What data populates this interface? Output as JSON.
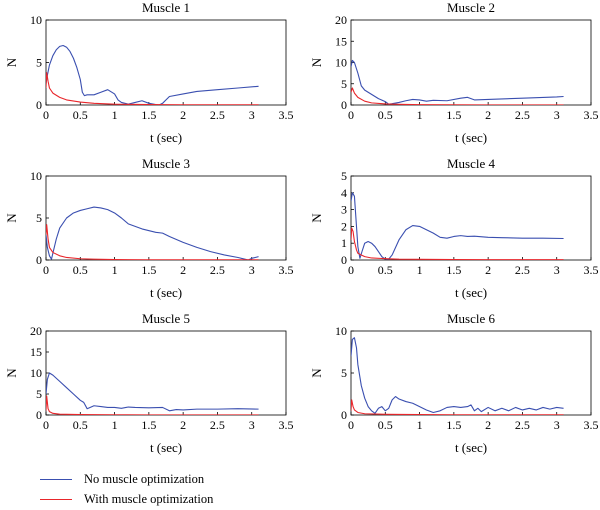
{
  "colors": {
    "no_opt": "#3a4fb0",
    "with_opt": "#e8262b"
  },
  "legend": {
    "items": [
      {
        "label": "No muscle optimization",
        "color": "#3a4fb0"
      },
      {
        "label": "With muscle optimization",
        "color": "#e8262b"
      }
    ]
  },
  "chart_data": [
    {
      "type": "line",
      "title": "Muscle 1",
      "xlabel": "t (sec)",
      "ylabel": "N",
      "xlim": [
        0,
        3.5
      ],
      "ylim": [
        0,
        10
      ],
      "xticks": [
        "0",
        "0.5",
        "1",
        "1.5",
        "2",
        "2.5",
        "3",
        "3.5"
      ],
      "yticks": [
        "0",
        "5",
        "10"
      ],
      "series": [
        {
          "name": "No muscle optimization",
          "color": "#3a4fb0",
          "x": [
            0,
            0.02,
            0.05,
            0.1,
            0.15,
            0.2,
            0.25,
            0.3,
            0.35,
            0.4,
            0.45,
            0.5,
            0.53,
            0.56,
            0.6,
            0.7,
            0.8,
            0.9,
            1.0,
            1.05,
            1.1,
            1.2,
            1.3,
            1.4,
            1.5,
            1.6,
            1.65,
            1.7,
            1.75,
            1.8,
            2.0,
            2.2,
            2.5,
            2.8,
            3.1
          ],
          "y": [
            2.5,
            3.5,
            4.7,
            5.8,
            6.5,
            6.9,
            7.0,
            6.8,
            6.3,
            5.5,
            4.4,
            3.0,
            1.5,
            1.1,
            1.2,
            1.2,
            1.5,
            1.8,
            1.3,
            0.6,
            0.3,
            0.1,
            0.3,
            0.5,
            0.2,
            0.05,
            0.0,
            0.2,
            0.6,
            1.0,
            1.3,
            1.6,
            1.8,
            2.0,
            2.2
          ]
        },
        {
          "name": "With muscle optimization",
          "color": "#e8262b",
          "x": [
            0,
            0.01,
            0.03,
            0.05,
            0.1,
            0.2,
            0.3,
            0.5,
            0.7,
            1.0,
            1.5,
            2.0,
            2.5,
            3.0,
            3.1
          ],
          "y": [
            2.0,
            3.8,
            2.8,
            2.0,
            1.4,
            0.9,
            0.6,
            0.35,
            0.2,
            0.1,
            0.05,
            0.03,
            0.02,
            0.02,
            0.02
          ]
        }
      ]
    },
    {
      "type": "line",
      "title": "Muscle 2",
      "xlabel": "t (sec)",
      "ylabel": "N",
      "xlim": [
        0,
        3.5
      ],
      "ylim": [
        0,
        20
      ],
      "xticks": [
        "0",
        "0.5",
        "1",
        "1.5",
        "2",
        "2.5",
        "3",
        "3.5"
      ],
      "yticks": [
        "0",
        "5",
        "10",
        "15",
        "20"
      ],
      "series": [
        {
          "name": "No muscle optimization",
          "color": "#3a4fb0",
          "x": [
            0,
            0.02,
            0.05,
            0.1,
            0.15,
            0.2,
            0.3,
            0.4,
            0.5,
            0.55,
            0.6,
            0.7,
            0.8,
            0.9,
            1.0,
            1.1,
            1.2,
            1.4,
            1.6,
            1.7,
            1.8,
            2.0,
            2.5,
            3.0,
            3.1
          ],
          "y": [
            9.0,
            10.5,
            10.0,
            7.5,
            4.5,
            3.5,
            2.5,
            1.5,
            0.8,
            0.2,
            0.3,
            0.6,
            1.0,
            1.3,
            1.2,
            0.9,
            1.1,
            1.0,
            1.6,
            1.8,
            1.2,
            1.3,
            1.6,
            1.9,
            2.0
          ]
        },
        {
          "name": "With muscle optimization",
          "color": "#e8262b",
          "x": [
            0,
            0.02,
            0.05,
            0.1,
            0.2,
            0.3,
            0.5,
            0.7,
            1.0,
            1.5,
            2.0,
            2.5,
            3.0,
            3.1
          ],
          "y": [
            3.0,
            4.0,
            2.8,
            1.8,
            0.9,
            0.5,
            0.25,
            0.15,
            0.08,
            0.05,
            0.03,
            0.02,
            0.02,
            0.02
          ]
        }
      ]
    },
    {
      "type": "line",
      "title": "Muscle 3",
      "xlabel": "t (sec)",
      "ylabel": "N",
      "xlim": [
        0,
        3.5
      ],
      "ylim": [
        0,
        10
      ],
      "xticks": [
        "0",
        "0.5",
        "1",
        "1.5",
        "2",
        "2.5",
        "3",
        "3.5"
      ],
      "yticks": [
        "0",
        "5",
        "10"
      ],
      "series": [
        {
          "name": "No muscle optimization",
          "color": "#3a4fb0",
          "x": [
            0,
            0.02,
            0.05,
            0.08,
            0.1,
            0.15,
            0.2,
            0.3,
            0.4,
            0.5,
            0.6,
            0.7,
            0.8,
            0.9,
            1.0,
            1.1,
            1.2,
            1.4,
            1.6,
            1.7,
            1.8,
            2.0,
            2.2,
            2.4,
            2.6,
            2.8,
            2.9,
            2.95,
            3.0,
            3.1
          ],
          "y": [
            3.0,
            1.5,
            0.5,
            0.1,
            0.8,
            2.5,
            3.8,
            5.0,
            5.6,
            5.9,
            6.1,
            6.3,
            6.2,
            6.0,
            5.6,
            5.0,
            4.3,
            3.7,
            3.3,
            3.2,
            2.8,
            2.1,
            1.5,
            1.0,
            0.6,
            0.3,
            0.1,
            0.0,
            0.2,
            0.4
          ]
        },
        {
          "name": "With muscle optimization",
          "color": "#e8262b",
          "x": [
            0,
            0.01,
            0.03,
            0.05,
            0.1,
            0.2,
            0.3,
            0.5,
            0.7,
            1.0,
            1.5,
            2.0,
            2.5,
            3.0,
            3.1
          ],
          "y": [
            3.0,
            4.2,
            2.5,
            1.5,
            0.9,
            0.5,
            0.3,
            0.15,
            0.1,
            0.05,
            0.03,
            0.02,
            0.02,
            0.02,
            0.02
          ]
        }
      ]
    },
    {
      "type": "line",
      "title": "Muscle 4",
      "xlabel": "t (sec)",
      "ylabel": "N",
      "xlim": [
        0,
        3.5
      ],
      "ylim": [
        0,
        5
      ],
      "xticks": [
        "0",
        "0.5",
        "1",
        "1.5",
        "2",
        "2.5",
        "3",
        "3.5"
      ],
      "yticks": [
        "0",
        "1",
        "2",
        "3",
        "4",
        "5"
      ],
      "series": [
        {
          "name": "No muscle optimization",
          "color": "#3a4fb0",
          "x": [
            0,
            0.02,
            0.05,
            0.08,
            0.1,
            0.13,
            0.16,
            0.2,
            0.25,
            0.3,
            0.35,
            0.4,
            0.45,
            0.5,
            0.55,
            0.6,
            0.7,
            0.8,
            0.9,
            1.0,
            1.1,
            1.2,
            1.3,
            1.4,
            1.5,
            1.6,
            1.7,
            1.8,
            2.0,
            2.2,
            2.5,
            2.8,
            3.1
          ],
          "y": [
            3.5,
            4.0,
            3.8,
            2.0,
            0.8,
            0.1,
            0.5,
            1.0,
            1.1,
            1.0,
            0.8,
            0.5,
            0.2,
            0.05,
            0.05,
            0.3,
            1.2,
            1.8,
            2.05,
            2.0,
            1.8,
            1.6,
            1.35,
            1.3,
            1.4,
            1.45,
            1.4,
            1.42,
            1.35,
            1.33,
            1.3,
            1.3,
            1.28
          ]
        },
        {
          "name": "With muscle optimization",
          "color": "#e8262b",
          "x": [
            0,
            0.01,
            0.03,
            0.05,
            0.08,
            0.1,
            0.15,
            0.2,
            0.3,
            0.5,
            0.7,
            1.0,
            1.5,
            2.0,
            2.5,
            3.0,
            3.1
          ],
          "y": [
            1.2,
            1.9,
            1.7,
            1.1,
            0.6,
            0.4,
            0.3,
            0.2,
            0.12,
            0.08,
            0.05,
            0.04,
            0.03,
            0.02,
            0.02,
            0.02,
            0.02
          ]
        }
      ]
    },
    {
      "type": "line",
      "title": "Muscle 5",
      "xlabel": "t (sec)",
      "ylabel": "N",
      "xlim": [
        0,
        3.5
      ],
      "ylim": [
        0,
        20
      ],
      "xticks": [
        "0",
        "0.5",
        "1",
        "1.5",
        "2",
        "2.5",
        "3",
        "3.5"
      ],
      "yticks": [
        "0",
        "5",
        "10",
        "15",
        "20"
      ],
      "series": [
        {
          "name": "No muscle optimization",
          "color": "#3a4fb0",
          "x": [
            0,
            0.02,
            0.05,
            0.1,
            0.2,
            0.3,
            0.4,
            0.5,
            0.55,
            0.6,
            0.7,
            0.8,
            0.9,
            1.0,
            1.1,
            1.2,
            1.3,
            1.5,
            1.7,
            1.8,
            1.9,
            2.0,
            2.2,
            2.5,
            2.8,
            3.1
          ],
          "y": [
            5.0,
            8.5,
            10.0,
            9.5,
            8.0,
            6.5,
            5.0,
            3.5,
            3.0,
            1.5,
            2.2,
            2.0,
            1.8,
            1.8,
            1.6,
            1.9,
            1.8,
            1.7,
            1.8,
            1.0,
            1.3,
            1.2,
            1.4,
            1.4,
            1.5,
            1.4
          ]
        },
        {
          "name": "With muscle optimization",
          "color": "#e8262b",
          "x": [
            0,
            0.01,
            0.03,
            0.05,
            0.1,
            0.2,
            0.5,
            1.0,
            1.5,
            2.0,
            2.5,
            3.0,
            3.1
          ],
          "y": [
            1.0,
            4.5,
            1.5,
            0.8,
            0.4,
            0.2,
            0.1,
            0.05,
            0.03,
            0.02,
            0.02,
            0.02,
            0.02
          ]
        }
      ]
    },
    {
      "type": "line",
      "title": "Muscle 6",
      "xlabel": "t (sec)",
      "ylabel": "N",
      "xlim": [
        0,
        3.5
      ],
      "ylim": [
        0,
        10
      ],
      "xticks": [
        "0",
        "0.5",
        "1",
        "1.5",
        "2",
        "2.5",
        "3",
        "3.5"
      ],
      "yticks": [
        "0",
        "5",
        "10"
      ],
      "series": [
        {
          "name": "No muscle optimization",
          "color": "#3a4fb0",
          "x": [
            0,
            0.02,
            0.05,
            0.08,
            0.1,
            0.15,
            0.2,
            0.25,
            0.3,
            0.35,
            0.4,
            0.45,
            0.5,
            0.55,
            0.6,
            0.65,
            0.7,
            0.8,
            0.9,
            1.0,
            1.1,
            1.2,
            1.3,
            1.4,
            1.5,
            1.6,
            1.7,
            1.75,
            1.8,
            1.85,
            1.9,
            2.0,
            2.1,
            2.2,
            2.3,
            2.4,
            2.5,
            2.6,
            2.7,
            2.8,
            2.9,
            3.0,
            3.1
          ],
          "y": [
            7.0,
            9.0,
            9.2,
            8.0,
            6.0,
            3.5,
            2.0,
            1.0,
            0.5,
            0.2,
            0.8,
            1.0,
            0.5,
            0.8,
            1.8,
            2.2,
            1.9,
            1.6,
            1.4,
            1.0,
            0.6,
            0.3,
            0.5,
            0.9,
            1.0,
            0.9,
            1.0,
            1.2,
            0.5,
            0.8,
            0.4,
            0.9,
            0.5,
            0.8,
            0.5,
            0.9,
            0.6,
            0.8,
            0.6,
            0.9,
            0.7,
            0.9,
            0.8
          ]
        },
        {
          "name": "With muscle optimization",
          "color": "#e8262b",
          "x": [
            0,
            0.01,
            0.03,
            0.05,
            0.1,
            0.2,
            0.5,
            1.0,
            1.5,
            2.0,
            2.5,
            3.0,
            3.1
          ],
          "y": [
            0.5,
            1.8,
            1.0,
            0.6,
            0.3,
            0.15,
            0.08,
            0.05,
            0.03,
            0.02,
            0.02,
            0.02,
            0.02
          ]
        }
      ]
    }
  ]
}
